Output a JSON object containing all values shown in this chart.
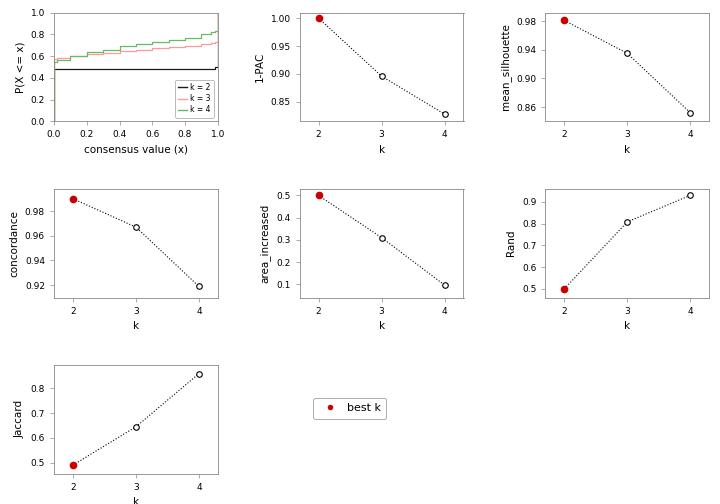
{
  "ecdf": {
    "k2": {
      "x": [
        0.0,
        0.001,
        0.02,
        0.5,
        0.98,
        0.999,
        1.0
      ],
      "y": [
        0.0,
        0.48,
        0.48,
        0.48,
        0.5,
        0.52,
        1.0
      ],
      "color": "#1a1a1a"
    },
    "k3": {
      "x": [
        0.0,
        0.001,
        0.02,
        0.1,
        0.2,
        0.3,
        0.4,
        0.5,
        0.6,
        0.7,
        0.8,
        0.9,
        0.96,
        0.98,
        0.999,
        1.0
      ],
      "y": [
        0.0,
        0.57,
        0.58,
        0.6,
        0.62,
        0.63,
        0.65,
        0.66,
        0.67,
        0.68,
        0.69,
        0.71,
        0.72,
        0.73,
        0.74,
        1.0
      ],
      "color": "#ff9999"
    },
    "k4": {
      "x": [
        0.0,
        0.001,
        0.02,
        0.1,
        0.2,
        0.3,
        0.4,
        0.5,
        0.6,
        0.7,
        0.8,
        0.9,
        0.96,
        0.98,
        0.999,
        1.0
      ],
      "y": [
        0.0,
        0.55,
        0.56,
        0.6,
        0.64,
        0.66,
        0.69,
        0.71,
        0.73,
        0.75,
        0.77,
        0.8,
        0.82,
        0.83,
        0.84,
        1.0
      ],
      "color": "#66bb66"
    }
  },
  "plot1pac": {
    "k": [
      2,
      3,
      4
    ],
    "y": [
      1.0,
      0.896,
      0.828
    ],
    "best_k": 2,
    "ylabel": "1-PAC",
    "yticks": [
      0.85,
      0.9,
      0.95,
      1.0
    ],
    "ylim": [
      0.815,
      1.01
    ]
  },
  "plot_mean_sil": {
    "k": [
      2,
      3,
      4
    ],
    "y": [
      0.981,
      0.935,
      0.852
    ],
    "best_k": 2,
    "ylabel": "mean_silhouette",
    "yticks": [
      0.86,
      0.9,
      0.94,
      0.98
    ],
    "ylim": [
      0.84,
      0.992
    ]
  },
  "plot_concordance": {
    "k": [
      2,
      3,
      4
    ],
    "y": [
      0.99,
      0.967,
      0.919
    ],
    "best_k": 2,
    "ylabel": "concordance",
    "yticks": [
      0.92,
      0.94,
      0.96,
      0.98
    ],
    "ylim": [
      0.91,
      0.998
    ]
  },
  "plot_area_increased": {
    "k": [
      2,
      3,
      4
    ],
    "y": [
      0.5,
      0.31,
      0.096
    ],
    "best_k": 2,
    "ylabel": "area_increased",
    "yticks": [
      0.1,
      0.2,
      0.3,
      0.4,
      0.5
    ],
    "ylim": [
      0.04,
      0.53
    ]
  },
  "plot_rand": {
    "k": [
      2,
      3,
      4
    ],
    "y": [
      0.5,
      0.808,
      0.93
    ],
    "best_k": 2,
    "ylabel": "Rand",
    "yticks": [
      0.5,
      0.6,
      0.7,
      0.8,
      0.9
    ],
    "ylim": [
      0.46,
      0.96
    ]
  },
  "plot_jaccard": {
    "k": [
      2,
      3,
      4
    ],
    "y": [
      0.49,
      0.645,
      0.86
    ],
    "best_k": 2,
    "ylabel": "Jaccard",
    "yticks": [
      0.5,
      0.6,
      0.7,
      0.8
    ],
    "ylim": [
      0.455,
      0.895
    ]
  },
  "legend_labels": [
    "k = 2",
    "k = 3",
    "k = 4"
  ],
  "legend_colors": [
    "#1a1a1a",
    "#ff9999",
    "#66bb66"
  ],
  "best_k_color": "#cc0000",
  "open_circle_color": "#000000",
  "line_color": "#000000",
  "line_style": ":",
  "bg_color": "#ffffff",
  "panel_bg": "#ffffff",
  "axis_color": "#888888",
  "tick_fontsize": 6.5,
  "label_fontsize": 7.5
}
